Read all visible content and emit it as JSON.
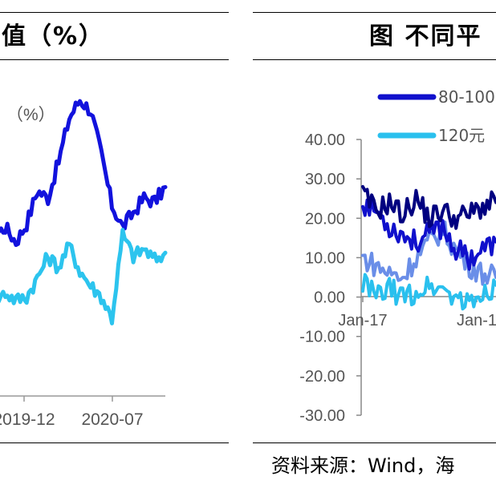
{
  "left_panel": {
    "title": "均值（%）",
    "unit_label": "（%）"
  },
  "right_panel": {
    "title": "图  不同平",
    "source": "资料来源：Wind，海"
  },
  "chart_data": [
    {
      "type": "line",
      "title": "均值（%）",
      "x_tick_labels": [
        "2019-12",
        "2020-07"
      ],
      "series": [
        {
          "color": "#1212dd",
          "x": [
            "2019-06",
            "2019-07",
            "2019-08",
            "2019-09",
            "2019-10",
            "2019-11",
            "2019-12",
            "2020-01",
            "2020-02",
            "2020-03",
            "2020-04",
            "2020-05",
            "2020-06",
            "2020-07",
            "2020-08",
            "2020-09",
            "2020-10",
            "2020-11"
          ],
          "values": [
            22,
            18,
            20,
            16,
            21,
            30,
            28,
            38,
            50,
            55,
            52,
            40,
            26,
            20,
            24,
            28,
            27,
            31
          ]
        },
        {
          "color": "#2cc4ee",
          "x": [
            "2019-06",
            "2019-07",
            "2019-08",
            "2019-09",
            "2019-10",
            "2019-11",
            "2019-12",
            "2020-01",
            "2020-02",
            "2020-03",
            "2020-04",
            "2020-05",
            "2020-06",
            "2020-07",
            "2020-08",
            "2020-09",
            "2020-10",
            "2020-11"
          ],
          "values": [
            3,
            0,
            2,
            0,
            1,
            6,
            12,
            9,
            15,
            8,
            4,
            1,
            -5,
            18,
            12,
            14,
            11,
            13
          ]
        }
      ]
    },
    {
      "type": "line",
      "title": "图  不同平",
      "y_ticks": [
        "40.00",
        "30.00",
        "20.00",
        "10.00",
        "0.00",
        "-10.00",
        "-20.00",
        "-30.00"
      ],
      "ylim": [
        -30,
        40
      ],
      "x_tick_labels": [
        "Jan-17",
        "Jan-1"
      ],
      "legend": [
        "80-100",
        "120元"
      ],
      "legend_position": "top",
      "series": [
        {
          "name": "80-100",
          "color": "#1010cc",
          "x": [
            "2017-01",
            "2017-03",
            "2017-05",
            "2017-07",
            "2017-09",
            "2017-11",
            "2018-01",
            "2018-03",
            "2018-05",
            "2018-07",
            "2018-09"
          ],
          "values": [
            24,
            22,
            18,
            16,
            14,
            16,
            18,
            12,
            10,
            12,
            14
          ]
        },
        {
          "name": "120元",
          "color": "#2ac0ee",
          "x": [
            "2017-01",
            "2017-03",
            "2017-05",
            "2017-07",
            "2017-09",
            "2017-11",
            "2018-01",
            "2018-03",
            "2018-05",
            "2018-07",
            "2018-09"
          ],
          "values": [
            4,
            0,
            2,
            0,
            1,
            3,
            2,
            0,
            -2,
            1,
            3
          ]
        },
        {
          "color": "#000080",
          "x": [
            "2017-01",
            "2017-03",
            "2017-05",
            "2017-07",
            "2017-09",
            "2017-11",
            "2018-01",
            "2018-03",
            "2018-05",
            "2018-07",
            "2018-09"
          ],
          "values": [
            26,
            22,
            24,
            21,
            25,
            20,
            22,
            20,
            21,
            23,
            24
          ]
        },
        {
          "color": "#6a8ee8",
          "x": [
            "2017-01",
            "2017-03",
            "2017-05",
            "2017-07",
            "2017-09",
            "2017-11",
            "2018-01",
            "2018-03",
            "2018-05",
            "2018-07",
            "2018-09"
          ],
          "values": [
            10,
            8,
            6,
            5,
            10,
            14,
            17,
            12,
            8,
            6,
            5
          ]
        }
      ]
    }
  ]
}
